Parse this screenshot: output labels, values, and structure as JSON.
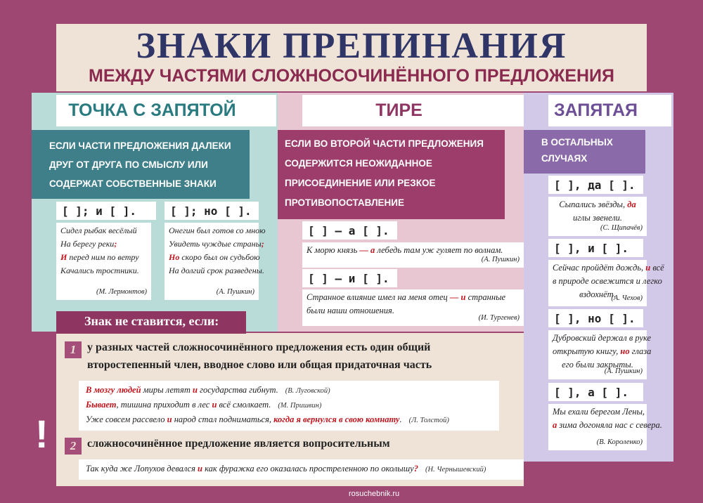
{
  "header": {
    "title": "ЗНАКИ ПРЕПИНАНИЯ",
    "subtitle": "МЕЖДУ ЧАСТЯМИ СЛОЖНОСОЧИНЁННОГО ПРЕДЛОЖЕНИЯ"
  },
  "columns": [
    {
      "heading": "ТОЧКА С ЗАПЯТОЙ",
      "rule": [
        "ЕСЛИ ЧАСТИ ПРЕДЛОЖЕНИЯ ДАЛЕКИ",
        "ДРУГ ОТ ДРУГА ПО СМЫСЛУ ИЛИ",
        "СОДЕРЖАТ СОБСТВЕННЫЕ ЗНАКИ"
      ],
      "schemes": [
        {
          "scheme": "[   ]; и [   ].",
          "example": {
            "lines": [
              [
                {
                  "text": "Сидел рыбак весёлый"
                }
              ],
              [
                {
                  "text": "На берегу реки"
                },
                {
                  "text": ";",
                  "color": "#c0141c"
                }
              ],
              [
                {
                  "text": "И",
                  "color": "#c0141c"
                },
                {
                  "text": " перед ним по ветру"
                }
              ],
              [
                {
                  "text": "Качались тростники."
                }
              ]
            ],
            "author": "(М. Лермонтов)"
          }
        },
        {
          "scheme": "[   ]; но [   ].",
          "example": {
            "lines": [
              [
                {
                  "text": "Онегин был готов со мною"
                }
              ],
              [
                {
                  "text": "Увидеть чуждые страны"
                },
                {
                  "text": ";",
                  "color": "#c0141c"
                }
              ],
              [
                {
                  "text": "Но",
                  "color": "#c0141c"
                },
                {
                  "text": " скоро был он судьбою"
                }
              ],
              [
                {
                  "text": "На долгий срок разведены."
                }
              ]
            ],
            "author": "(А. Пушкин)"
          }
        }
      ]
    },
    {
      "heading": "ТИРЕ",
      "rule": [
        "ЕСЛИ ВО ВТОРОЙ ЧАСТИ ПРЕДЛОЖЕНИЯ",
        "СОДЕРЖИТСЯ НЕОЖИДАННОЕ",
        "ПРИСОЕДИНЕНИЕ ИЛИ РЕЗКОЕ",
        "ПРОТИВОПОСТАВЛЕНИЕ"
      ],
      "schemes": [
        {
          "scheme": "[   ] — а [   ].",
          "example": {
            "lines": [
              [
                {
                  "text": "К морю князь "
                },
                {
                  "text": "— а",
                  "color": "#c0141c"
                },
                {
                  "text": " лебедь там уж гуляет по волнам."
                }
              ]
            ],
            "author": "(А. Пушкин)"
          }
        },
        {
          "scheme": "[   ] — и [   ].",
          "example": {
            "lines": [
              [
                {
                  "text": "Странное влияние имел на меня отец "
                },
                {
                  "text": "— и",
                  "color": "#c0141c"
                },
                {
                  "text": " странные"
                }
              ],
              [
                {
                  "text": "были наши отношения."
                }
              ]
            ],
            "author": "(И. Тургенев)"
          }
        }
      ]
    },
    {
      "heading": "ЗАПЯТАЯ",
      "rule": [
        "В ОСТАЛЬНЫХ",
        "СЛУЧАЯХ"
      ],
      "schemes": [
        {
          "scheme": "[   ], да [   ].",
          "example": {
            "lines": [
              [
                {
                  "text": "Сыпались звёзды, "
                },
                {
                  "text": "да",
                  "color": "#c0141c"
                }
              ],
              [
                {
                  "text": "иглы звенели."
                }
              ]
            ],
            "author": "(С. Щипачёв)"
          }
        },
        {
          "scheme": "[   ], и [   ].",
          "example": {
            "lines": [
              [
                {
                  "text": "Сейчас пройдёт дождь, "
                },
                {
                  "text": "и",
                  "color": "#c0141c"
                },
                {
                  "text": " всё"
                }
              ],
              [
                {
                  "text": "в природе освежится и легко"
                }
              ],
              [
                {
                  "text": "вздохнёт."
                }
              ]
            ],
            "author": "(А. Чехов)"
          }
        },
        {
          "scheme": "[   ], но [   ].",
          "example": {
            "lines": [
              [
                {
                  "text": "Дубровский держал в руке"
                }
              ],
              [
                {
                  "text": "открытую книгу, "
                },
                {
                  "text": "но",
                  "color": "#c0141c"
                },
                {
                  "text": " глаза"
                }
              ],
              [
                {
                  "text": "его были закрыты."
                }
              ]
            ],
            "author": "(А. Пушкин)"
          }
        },
        {
          "scheme": "[   ], а [   ].",
          "example": {
            "lines": [
              [
                {
                  "text": "Мы ехали берегом Лены,"
                }
              ],
              [
                {
                  "text": "а",
                  "color": "#c0141c"
                },
                {
                  "text": " зима догоняла нас с севера."
                }
              ]
            ],
            "author": "(В. Короленко)"
          }
        }
      ]
    }
  ],
  "exceptions": {
    "heading": "Знак не ставится, если:",
    "mark": "!",
    "items": [
      {
        "number": "1",
        "text": [
          "у разных частей сложносочинённого предложения есть один общий",
          "второстепенный член, вводное слово или общая придаточная часть"
        ],
        "examples": [
          {
            "line": [
              {
                "text": "В мозгу людей",
                "color": "#c0141c"
              },
              {
                "text": " миры летят "
              },
              {
                "text": "и",
                "color": "#c0141c"
              },
              {
                "text": " государства гибнут."
              }
            ],
            "author": "(В. Луговской)"
          },
          {
            "line": [
              {
                "text": "Бывает",
                "color": "#c0141c"
              },
              {
                "text": ", тишина приходит в лес "
              },
              {
                "text": "и",
                "color": "#c0141c"
              },
              {
                "text": " всё смолкает."
              }
            ],
            "author": "(М. Пришвин)"
          },
          {
            "line": [
              {
                "text": "Уже совсем рассвело "
              },
              {
                "text": "и",
                "color": "#c0141c"
              },
              {
                "text": " народ стал подниматься, "
              },
              {
                "text": "когда я вернулся в свою комнату",
                "color": "#c0141c"
              },
              {
                "text": "."
              }
            ],
            "author": "(Л. Толстой)"
          }
        ]
      },
      {
        "number": "2",
        "text": [
          "сложносочинённое предложение является вопросительным"
        ],
        "examples": [
          {
            "line": [
              {
                "text": "Так куда же Лопухов девался "
              },
              {
                "text": "и",
                "color": "#c0141c"
              },
              {
                "text": " как фуражка его оказалась простреленною по околышу"
              },
              {
                "text": "?",
                "color": "#c0141c"
              }
            ],
            "author": "(Н. Чернышевский)"
          }
        ]
      }
    ]
  },
  "footer": {
    "site": "rosuchebnik.ru"
  }
}
